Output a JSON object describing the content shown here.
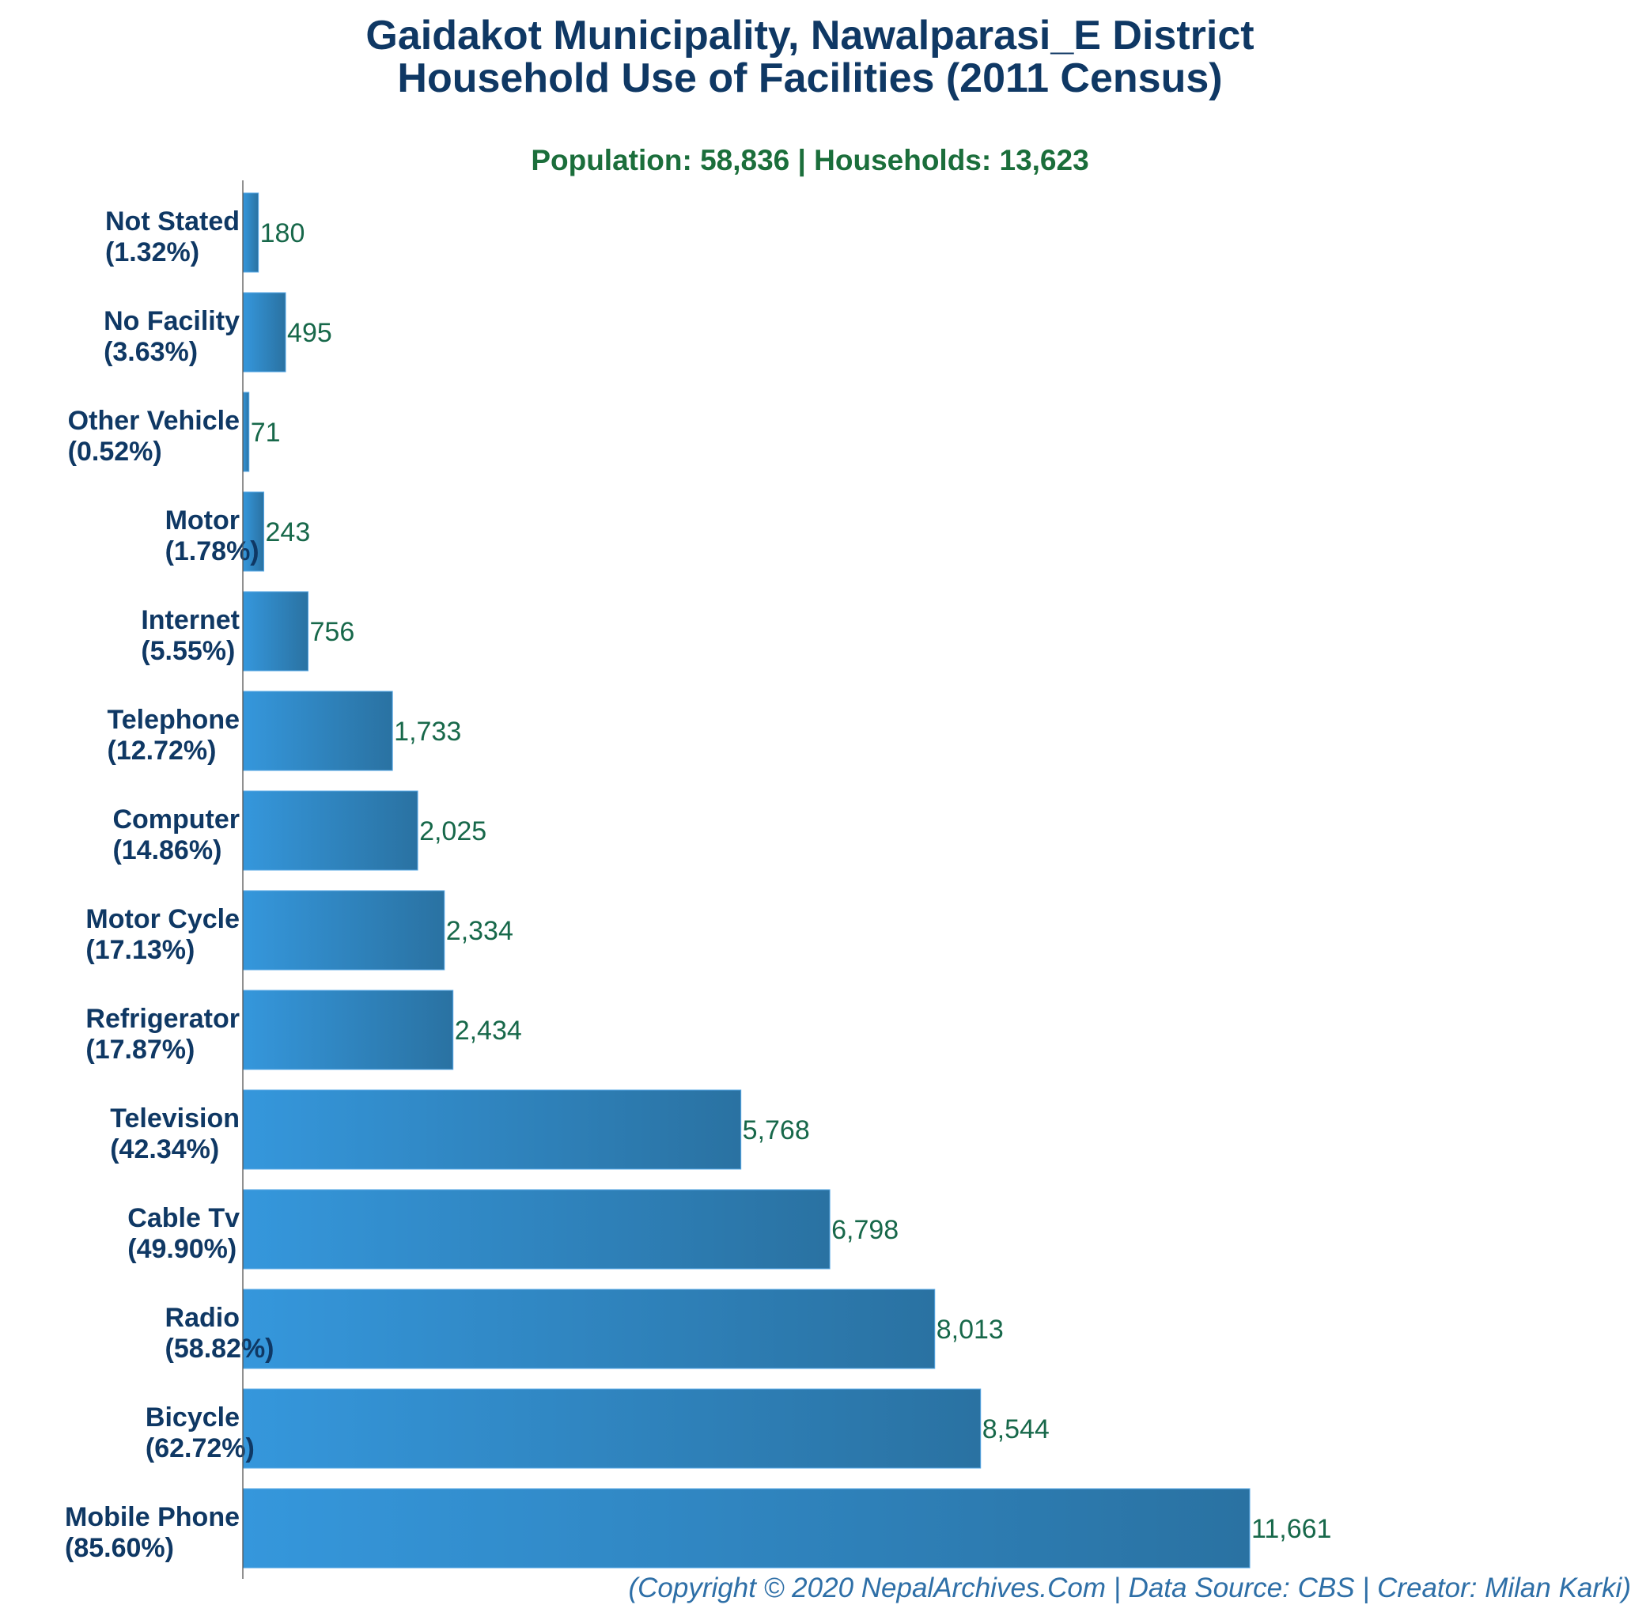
{
  "chart_data": {
    "type": "bar",
    "orientation": "horizontal",
    "title": "Gaidakot Municipality, Nawalparasi_E District",
    "title_line2": "Household Use of Facilities (2011 Census)",
    "subtitle": "Population: 58,836 | Households: 13,623",
    "categories": [
      "Not Stated",
      "No Facility",
      "Other Vehicle",
      "Motor",
      "Internet",
      "Telephone",
      "Computer",
      "Motor Cycle",
      "Refrigerator",
      "Television",
      "Cable Tv",
      "Radio",
      "Bicycle",
      "Mobile Phone"
    ],
    "percent_labels": [
      "(1.32%)",
      "(3.63%)",
      "(0.52%)",
      "(1.78%)",
      "(5.55%)",
      "(12.72%)",
      "(14.86%)",
      "(17.13%)",
      "(17.87%)",
      "(42.34%)",
      "(49.90%)",
      "(58.82%)",
      "(62.72%)",
      "(85.60%)"
    ],
    "values": [
      180,
      495,
      71,
      243,
      756,
      1733,
      2025,
      2334,
      2434,
      5768,
      6798,
      8013,
      8544,
      11661
    ],
    "value_labels": [
      "180",
      "495",
      "71",
      "243",
      "756",
      "1,733",
      "2,025",
      "2,334",
      "2,434",
      "5,768",
      "6,798",
      "8,013",
      "8,544",
      "11,661"
    ],
    "xlim": [
      0,
      11661
    ],
    "grid": false,
    "xlabel": "",
    "ylabel": "",
    "colors": {
      "bar_left": "#3597dc",
      "bar_right": "#2a72a2",
      "category_text": "#0f3864",
      "value_text": "#17684a",
      "subtitle": "#1b6e3b",
      "footer": "#2e6fa7"
    }
  },
  "footer": "(Copyright © 2020 NepalArchives.Com | Data Source: CBS | Creator: Milan Karki)"
}
